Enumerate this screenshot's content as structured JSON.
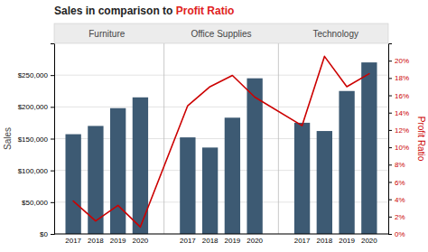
{
  "chart_data": {
    "type": "bar",
    "title": [
      {
        "text": "Sales in comparison to ",
        "color": "#222222"
      },
      {
        "text": "Profit Ratio",
        "color": "#e02020"
      }
    ],
    "groups": [
      "Furniture",
      "Office Supplies",
      "Technology"
    ],
    "categories": [
      "2017",
      "2018",
      "2019",
      "2020"
    ],
    "ylabel": "Sales",
    "y2label": "Profit Ratio",
    "series": [
      {
        "type": "bar",
        "color": "#3d5a73",
        "values": [
          [
            157000,
            170000,
            198000,
            215000
          ],
          [
            152000,
            136000,
            183000,
            245000
          ],
          [
            175000,
            162000,
            225000,
            270000
          ]
        ]
      },
      {
        "type": "line",
        "axis": "y2",
        "color": "#cc0000",
        "values": [
          [
            0.038,
            0.015,
            0.033,
            0.008
          ],
          [
            0.148,
            0.17,
            0.183,
            0.158
          ],
          [
            0.125,
            0.205,
            0.17,
            0.185
          ]
        ]
      }
    ],
    "ylim": [
      0,
      300000
    ],
    "yticks": [
      {
        "value": 0,
        "label": "$0"
      },
      {
        "value": 50000,
        "label": "$50,000"
      },
      {
        "value": 100000,
        "label": "$100,000"
      },
      {
        "value": 150000,
        "label": "$150,000"
      },
      {
        "value": 200000,
        "label": "$200,000"
      },
      {
        "value": 250000,
        "label": "$250,000"
      }
    ],
    "y2lim": [
      0,
      0.22
    ],
    "y2ticks": [
      {
        "value": 0,
        "label": "0%"
      },
      {
        "value": 0.02,
        "label": "2%"
      },
      {
        "value": 0.04,
        "label": "4%"
      },
      {
        "value": 0.06,
        "label": "6%"
      },
      {
        "value": 0.08,
        "label": "8%"
      },
      {
        "value": 0.1,
        "label": "10%"
      },
      {
        "value": 0.12,
        "label": "12%"
      },
      {
        "value": 0.14,
        "label": "14%"
      },
      {
        "value": 0.16,
        "label": "16%"
      },
      {
        "value": 0.18,
        "label": "18%"
      },
      {
        "value": 0.2,
        "label": "20%"
      }
    ],
    "grid": true
  }
}
